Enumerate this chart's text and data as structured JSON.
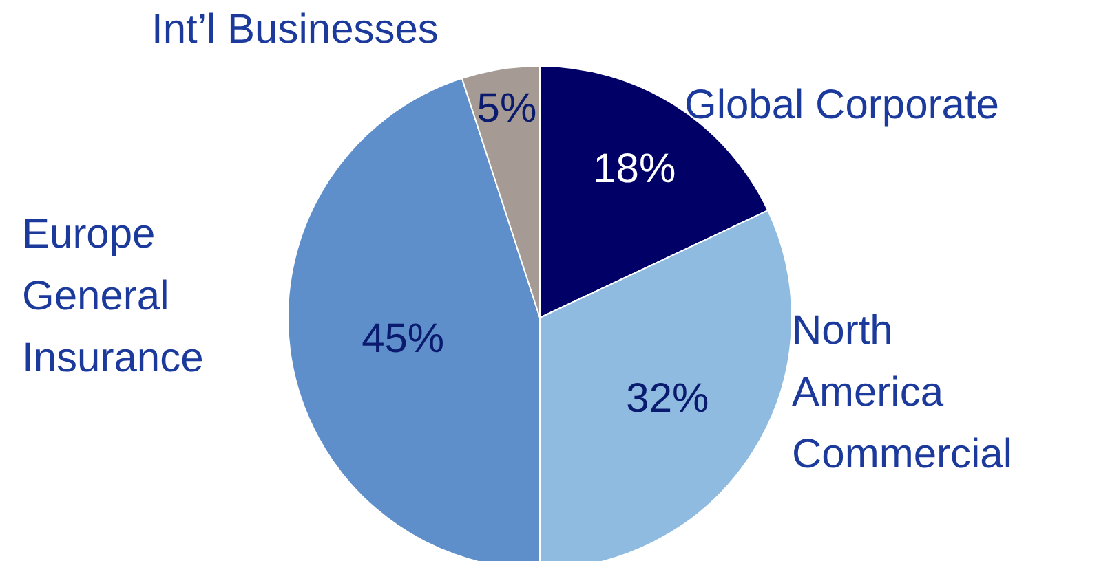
{
  "chart_data": {
    "type": "pie",
    "categories": [
      "Global Corporate",
      "North America Commercial",
      "Europe General Insurance",
      "Int’l Businesses"
    ],
    "values": [
      18,
      32,
      45,
      5
    ],
    "colors": [
      "#000066",
      "#8fbbe1",
      "#5f8fca",
      "#a59a94"
    ],
    "value_labels": [
      "18%",
      "32%",
      "45%",
      "5%"
    ]
  }
}
